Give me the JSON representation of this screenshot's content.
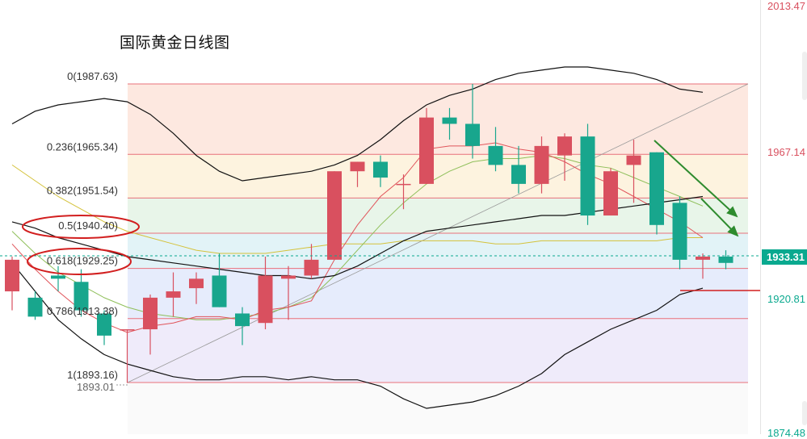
{
  "title": "国际黄金日线图",
  "colors": {
    "up": "#d9505f",
    "down": "#18a68d",
    "fib_line": "#e8707a",
    "boll": "#111111",
    "ma_fast": "#e0545a",
    "ma_mid": "#8fbf5a",
    "ma_slow": "#d4c23a",
    "annotation_ellipse": "#d21f1f",
    "arrow": "#2e8b2e",
    "axis_red": "#d9505f",
    "axis_green": "#0aa98f"
  },
  "axis": {
    "top_label": "2013.47",
    "level_1967": "1967.14",
    "current_price": "1933.31",
    "level_1920": "1920.81",
    "bottom_label": "1874.48"
  },
  "chart_data": {
    "type": "candlestick",
    "title": "国际黄金日线图",
    "ylim": [
      1874.48,
      2013.47
    ],
    "fibonacci": [
      {
        "label": "0(1987.63)",
        "ratio": 0,
        "price": 1987.63,
        "fill": "#fde8e0"
      },
      {
        "label": "0.236(1965.34)",
        "ratio": 0.236,
        "price": 1965.34,
        "fill": "#fdf3df"
      },
      {
        "label": "0.382(1951.54)",
        "ratio": 0.382,
        "price": 1951.54,
        "fill": "#e8f5e9"
      },
      {
        "label": "0.5(1940.40)",
        "ratio": 0.5,
        "price": 1940.4,
        "fill": "#e2f3f7"
      },
      {
        "label": "0.618(1929.25)",
        "ratio": 0.618,
        "price": 1929.25,
        "fill": "#e6ecfc"
      },
      {
        "label": "0.786(1913.38)",
        "ratio": 0.786,
        "price": 1913.38,
        "fill": "#efebfa"
      },
      {
        "label": "1(1893.16)",
        "ratio": 1,
        "price": 1893.16,
        "fill": "#fafafa"
      }
    ],
    "low_marker": "1893.01",
    "current_price": 1933.31,
    "support_level": 1920.81,
    "highlighted_levels": [
      "0.5(1940.40)",
      "0.618(1929.25)"
    ],
    "candles": [
      {
        "o": 1922,
        "h": 1933,
        "l": 1916,
        "c": 1932
      },
      {
        "o": 1920,
        "h": 1922,
        "l": 1913,
        "c": 1914
      },
      {
        "o": 1927,
        "h": 1930,
        "l": 1922,
        "c": 1926
      },
      {
        "o": 1925,
        "h": 1929,
        "l": 1914,
        "c": 1916
      },
      {
        "o": 1915,
        "h": 1916,
        "l": 1905,
        "c": 1908
      },
      {
        "o": 1910,
        "h": 1910,
        "l": 1893.01,
        "c": 1910
      },
      {
        "o": 1910,
        "h": 1921,
        "l": 1902,
        "c": 1920
      },
      {
        "o": 1920,
        "h": 1928,
        "l": 1914,
        "c": 1922
      },
      {
        "o": 1923,
        "h": 1928,
        "l": 1918,
        "c": 1926
      },
      {
        "o": 1927,
        "h": 1934,
        "l": 1917,
        "c": 1917
      },
      {
        "o": 1915,
        "h": 1917,
        "l": 1905,
        "c": 1911
      },
      {
        "o": 1912,
        "h": 1933,
        "l": 1910,
        "c": 1927
      },
      {
        "o": 1926,
        "h": 1930,
        "l": 1913,
        "c": 1927
      },
      {
        "o": 1927,
        "h": 1937,
        "l": 1926,
        "c": 1932
      },
      {
        "o": 1932,
        "h": 1960,
        "l": 1932,
        "c": 1960
      },
      {
        "o": 1960,
        "h": 1963,
        "l": 1955,
        "c": 1963
      },
      {
        "o": 1963,
        "h": 1965,
        "l": 1955,
        "c": 1958
      },
      {
        "o": 1956,
        "h": 1959,
        "l": 1948,
        "c": 1956
      },
      {
        "o": 1956,
        "h": 1980,
        "l": 1956,
        "c": 1977
      },
      {
        "o": 1977,
        "h": 1980,
        "l": 1970,
        "c": 1975
      },
      {
        "o": 1975,
        "h": 1987.63,
        "l": 1964,
        "c": 1968
      },
      {
        "o": 1968,
        "h": 1974,
        "l": 1960,
        "c": 1962
      },
      {
        "o": 1962,
        "h": 1968,
        "l": 1953,
        "c": 1956
      },
      {
        "o": 1956,
        "h": 1971,
        "l": 1953,
        "c": 1968
      },
      {
        "o": 1965,
        "h": 1972,
        "l": 1957,
        "c": 1971
      },
      {
        "o": 1971,
        "h": 1975,
        "l": 1943,
        "c": 1946
      },
      {
        "o": 1946,
        "h": 1961,
        "l": 1946,
        "c": 1960
      },
      {
        "o": 1962,
        "h": 1970,
        "l": 1950,
        "c": 1965
      },
      {
        "o": 1966,
        "h": 1966,
        "l": 1940,
        "c": 1943
      },
      {
        "o": 1950,
        "h": 1952,
        "l": 1929,
        "c": 1932
      },
      {
        "o": 1932,
        "h": 1934,
        "l": 1926,
        "c": 1933
      },
      {
        "o": 1933,
        "h": 1935,
        "l": 1929,
        "c": 1931
      }
    ],
    "bollinger": {
      "upper": [
        1975,
        1979,
        1981,
        1982,
        1983,
        1982,
        1978,
        1972,
        1965,
        1960,
        1957,
        1958,
        1959,
        1960,
        1962,
        1965,
        1970,
        1976,
        1981,
        1984,
        1986,
        1989,
        1991,
        1992,
        1993,
        1993,
        1992,
        1991,
        1989,
        1986,
        1985
      ],
      "mid": [
        1944,
        1942,
        1939,
        1937,
        1935,
        1933,
        1932,
        1931,
        1930,
        1929,
        1928,
        1927,
        1927,
        1926,
        1927,
        1930,
        1934,
        1938,
        1941,
        1942,
        1943,
        1944,
        1945,
        1946,
        1946,
        1947,
        1948,
        1949,
        1950,
        1951,
        1952
      ],
      "lower": [
        1931,
        1922,
        1913,
        1907,
        1902,
        1899,
        1897,
        1895,
        1894,
        1894,
        1895,
        1895,
        1894,
        1895,
        1894,
        1894,
        1892,
        1888,
        1885,
        1886,
        1887,
        1889,
        1892,
        1896,
        1902,
        1906,
        1910,
        1913,
        1916,
        1921,
        1923
      ]
    },
    "ma_fast": [
      1937,
      1929,
      1922,
      1916,
      1912,
      1909,
      1911,
      1912,
      1914,
      1914,
      1913,
      1916,
      1917,
      1919,
      1932,
      1943,
      1952,
      1958,
      1967,
      1968,
      1968,
      1969,
      1967,
      1966,
      1963,
      1959,
      1956,
      1952,
      1948,
      1944,
      1939
    ],
    "ma_mid": [
      1941,
      1934,
      1928,
      1924,
      1920,
      1917,
      1915,
      1914,
      1913,
      1913,
      1914,
      1915,
      1917,
      1920,
      1927,
      1935,
      1943,
      1950,
      1956,
      1960,
      1963,
      1964,
      1964,
      1965,
      1964,
      1962,
      1961,
      1958,
      1955,
      1952,
      1949
    ],
    "ma_slow": [
      1962,
      1957,
      1952,
      1948,
      1944,
      1941,
      1939,
      1937,
      1935,
      1934,
      1934,
      1934,
      1935,
      1936,
      1937,
      1937,
      1937,
      1938,
      1938,
      1938,
      1938,
      1937,
      1937,
      1938,
      1938,
      1938,
      1938,
      1938,
      1938,
      1939,
      1939
    ]
  }
}
